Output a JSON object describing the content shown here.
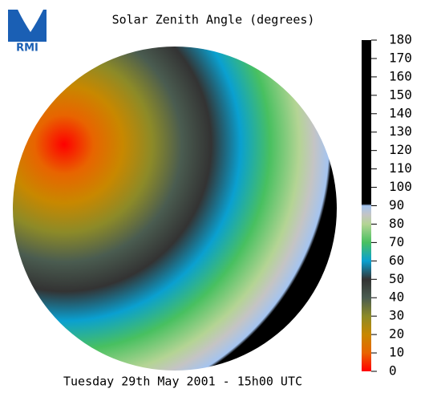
{
  "logo": "RMI",
  "title": "Solar Zenith Angle (degrees)",
  "footer": "Tuesday 29th May 2001 - 15h00 UTC",
  "colorbar": {
    "lim": [
      0,
      180
    ],
    "ticks": [
      0,
      10,
      20,
      30,
      40,
      50,
      60,
      70,
      80,
      90,
      100,
      110,
      120,
      130,
      140,
      150,
      160,
      170,
      180
    ],
    "stops": [
      {
        "value": 0,
        "color": "#ff0000"
      },
      {
        "value": 10,
        "color": "#e86400"
      },
      {
        "value": 20,
        "color": "#c88800"
      },
      {
        "value": 30,
        "color": "#8c8a28"
      },
      {
        "value": 40,
        "color": "#4a5c50"
      },
      {
        "value": 50,
        "color": "#333333"
      },
      {
        "value": 60,
        "color": "#0aa0d0"
      },
      {
        "value": 70,
        "color": "#48c060"
      },
      {
        "value": 80,
        "color": "#b4d494"
      },
      {
        "value": 85,
        "color": "#c4c4c4"
      },
      {
        "value": 90,
        "color": "#a4c4f0"
      },
      {
        "value": 91,
        "color": "#000000"
      },
      {
        "value": 180,
        "color": "#000000"
      }
    ]
  }
}
